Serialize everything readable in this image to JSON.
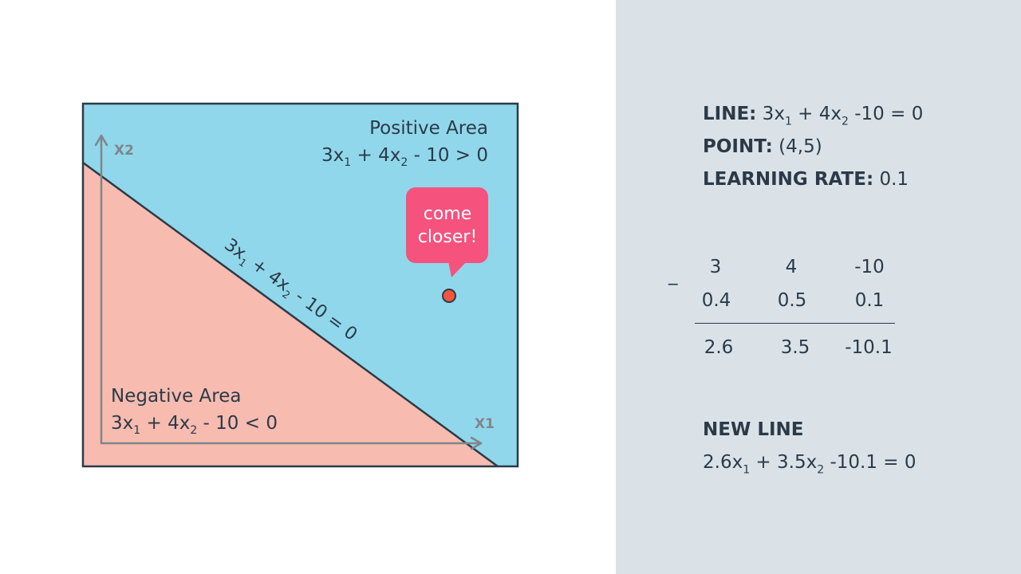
{
  "colors": {
    "positive_area": "#91d7eb",
    "negative_area": "#f7bbaf",
    "frame": "#2b3a48",
    "axis": "#7f868b",
    "bubble": "#f5527e",
    "point": "#f2553f",
    "right_panel_bg": "#dae2e8"
  },
  "diagram": {
    "x_axis_label": "X1",
    "y_axis_label": "X2",
    "positive": {
      "title": "Positive Area",
      "eq_a": "3x",
      "sub1": "1",
      "eq_b": " + 4x",
      "sub2": "2",
      "eq_c": " - 10 > 0"
    },
    "negative": {
      "title": "Negative Area",
      "eq_a": "3x",
      "sub1": "1",
      "eq_b": " + 4x",
      "sub2": "2",
      "eq_c": " - 10 < 0"
    },
    "line_label": {
      "a": "3x",
      "sub1": "1",
      "b": " + 4x",
      "sub2": "2",
      "c": " - 10 = 0"
    },
    "bubble": {
      "line1": "come",
      "line2": "closer!"
    }
  },
  "panel": {
    "line": {
      "label": "LINE:",
      "a": " 3x",
      "sub1": "1",
      "b": " + 4x",
      "sub2": "2",
      "c": " -10 = 0"
    },
    "point": {
      "label": "POINT:",
      "value": " (4,5)"
    },
    "learning_rate": {
      "label": "LEARNING RATE:",
      "value": " 0.1"
    },
    "minus_sign": "_",
    "calc": {
      "row1": [
        "3",
        "4",
        "-10"
      ],
      "row2": [
        "0.4",
        "0.5",
        "0.1"
      ],
      "result": [
        "2.6",
        "3.5",
        "-10.1"
      ]
    },
    "new_line": {
      "label": "NEW LINE",
      "a": "2.6x",
      "sub1": "1",
      "b": " + 3.5x",
      "sub2": "2",
      "c": " -10.1 = 0"
    }
  }
}
